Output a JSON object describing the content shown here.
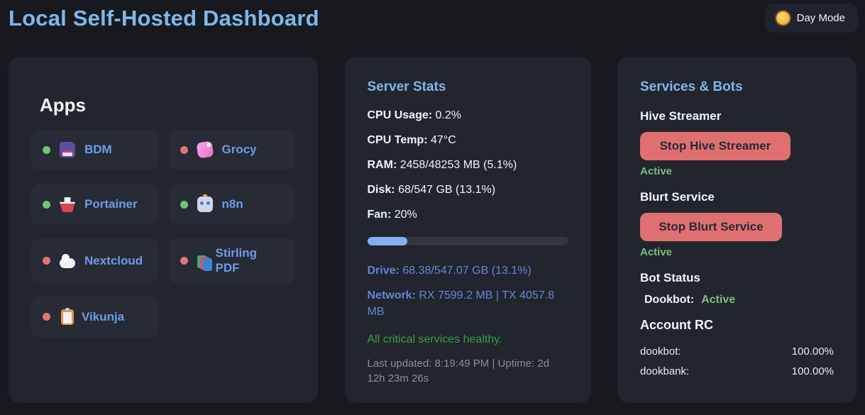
{
  "header": {
    "title": "Local Self-Hosted Dashboard",
    "day_mode_label": "Day Mode",
    "sun_icon": "sun-icon"
  },
  "apps": {
    "heading": "Apps",
    "items": [
      {
        "name": "BDM",
        "status": "online",
        "icon": "floppy-disk-icon"
      },
      {
        "name": "Grocy",
        "status": "offline",
        "icon": "soap-icon"
      },
      {
        "name": "Portainer",
        "status": "online",
        "icon": "ship-icon"
      },
      {
        "name": "n8n",
        "status": "online",
        "icon": "robot-icon"
      },
      {
        "name": "Nextcloud",
        "status": "offline",
        "icon": "cloud-icon"
      },
      {
        "name": "Stirling PDF",
        "status": "offline",
        "icon": "books-icon"
      },
      {
        "name": "Vikunja",
        "status": "offline",
        "icon": "clipboard-icon"
      }
    ]
  },
  "server_stats": {
    "heading": "Server Stats",
    "stats": [
      {
        "label": "CPU Usage:",
        "value": "0.2%"
      },
      {
        "label": "CPU Temp:",
        "value": "47°C"
      },
      {
        "label": "RAM:",
        "value": "2458/48253 MB (5.1%)"
      },
      {
        "label": "Disk:",
        "value": "68/547 GB (13.1%)"
      },
      {
        "label": "Fan:",
        "value": "20%"
      }
    ],
    "progress_percent": 20,
    "drive": {
      "label": "Drive:",
      "value": "68.38/547.07 GB (13.1%)"
    },
    "network": {
      "label": "Network:",
      "value": "RX 7599.2 MB | TX 4057.8 MB"
    },
    "health_message": "All critical services healthy.",
    "last_updated": "Last updated: 8:19:49 PM | Uptime: 2d 12h 23m 26s"
  },
  "services": {
    "heading": "Services & Bots",
    "items": [
      {
        "name": "Hive Streamer",
        "button_label": "Stop Hive Streamer",
        "status": "Active"
      },
      {
        "name": "Blurt Service",
        "button_label": "Stop Blurt Service",
        "status": "Active"
      }
    ],
    "bot_status": {
      "heading": "Bot Status",
      "bot_label": "Dookbot:",
      "bot_value": "Active"
    },
    "account_rc": {
      "heading": "Account RC",
      "rows": [
        {
          "account": "dookbot:",
          "value": "100.00%"
        },
        {
          "account": "dookbank:",
          "value": "100.00%"
        }
      ]
    }
  },
  "colors": {
    "page_bg": "#17191e",
    "card_bg": "#23252e",
    "tile_bg": "#262b35",
    "accent_blue": "#7cb8ec",
    "link_blue": "#6c9ce6",
    "stat_blue": "#5f86d8",
    "healthy_green": "#35a047",
    "active_green": "#76c07c",
    "online_dot": "#6ec576",
    "offline_dot": "#e57373",
    "stop_button_red": "#e0706f",
    "progress_fill": "#85aef2"
  }
}
